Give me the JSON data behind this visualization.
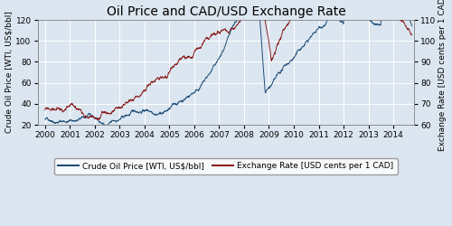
{
  "title": "Oil Price and CAD/USD Exchange Rate",
  "ylabel_left": "Crude Oil Price [WTI, US$/bbl]",
  "ylabel_right": "Exchange Rate [USD cents per 1 CAD]",
  "left_ylim": [
    20,
    120
  ],
  "right_ylim": [
    60,
    110
  ],
  "left_yticks": [
    20,
    40,
    60,
    80,
    100,
    120
  ],
  "right_yticks": [
    60,
    70,
    80,
    90,
    100,
    110
  ],
  "oil_color": "#1f4e79",
  "fx_color": "#8b2020",
  "bg_color": "#dce6f0",
  "grid_color": "#ffffff",
  "legend_oil": "Crude Oil Price [WTI, US$/bbl]",
  "legend_fx": "Exchange Rate [USD cents per 1 CAD]",
  "title_fontsize": 10,
  "label_fontsize": 6.5,
  "tick_fontsize": 6.5,
  "legend_fontsize": 6.5
}
